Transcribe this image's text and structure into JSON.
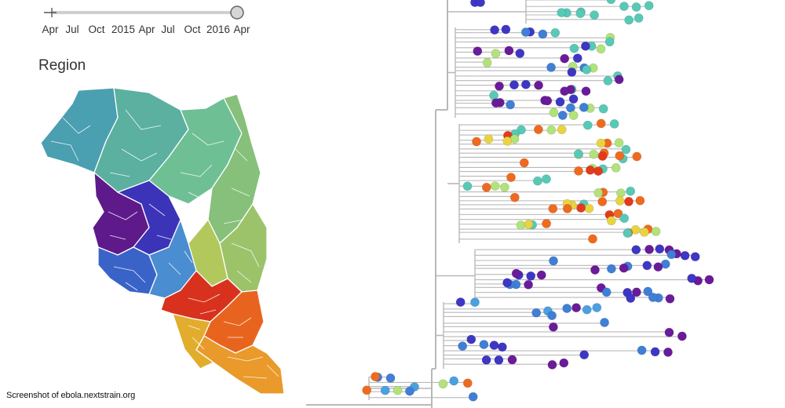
{
  "timeline": {
    "tick_labels": [
      "Apr",
      "Jul",
      "Oct",
      "2015",
      "Apr",
      "Jul",
      "Oct",
      "2016",
      "Apr"
    ],
    "slider_position": 1.0
  },
  "map": {
    "title": "Region",
    "region_colors": [
      "#4a9fb0",
      "#5bb0a0",
      "#6fbf95",
      "#86c07a",
      "#9cc36a",
      "#b2c85c",
      "#5e1a8a",
      "#3b33b8",
      "#3a63c8",
      "#4a8dd0",
      "#d8321e",
      "#e8641e",
      "#e99a2a",
      "#e2ad2d"
    ]
  },
  "tree": {
    "branch_color": "#b8b8b8",
    "clade_colors": {
      "teal": "#57c9b6",
      "lime": "#b2e27a",
      "orange": "#ef6a1f",
      "red": "#e23b1c",
      "yellow": "#e8d441",
      "purple": "#6a1b9a",
      "indigo": "#3e36c4",
      "blue": "#3f7fd6",
      "sky": "#4aa0e0"
    }
  },
  "credit": {
    "text": "Screenshot of ebola.nextstrain.org"
  }
}
